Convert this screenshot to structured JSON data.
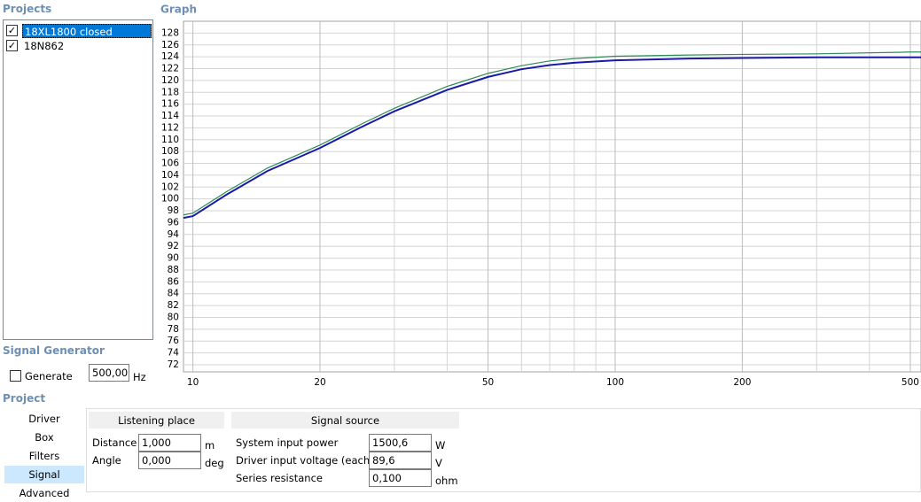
{
  "projects": {
    "title": "Projects",
    "items": [
      {
        "label": "18XL1800 closed",
        "checked": true,
        "selected": true
      },
      {
        "label": "18N862",
        "checked": true,
        "selected": false
      }
    ]
  },
  "signal_generator": {
    "title": "Signal Generator",
    "generate_label": "Generate",
    "generate_checked": false,
    "frequency": "500,00",
    "unit": "Hz"
  },
  "graph": {
    "title": "Graph"
  },
  "chart_data": {
    "type": "line",
    "xscale": "log",
    "grid": true,
    "x": [
      9.5,
      10,
      12,
      15,
      20,
      25,
      30,
      40,
      50,
      60,
      70,
      80,
      100,
      150,
      200,
      300,
      500,
      530
    ],
    "series": [
      {
        "color": "#2e8b57",
        "values": [
          97.3,
          97.6,
          101.2,
          105.2,
          109.1,
          112.6,
          115.3,
          119.0,
          121.2,
          122.5,
          123.3,
          123.7,
          124.1,
          124.3,
          124.4,
          124.5,
          124.8,
          124.8
        ]
      },
      {
        "color": "#1a1aa6",
        "values": [
          96.8,
          97.1,
          100.7,
          104.7,
          108.6,
          112.1,
          114.8,
          118.4,
          120.6,
          121.9,
          122.6,
          123.0,
          123.4,
          123.7,
          123.8,
          123.9,
          123.9,
          123.9
        ]
      }
    ],
    "xlim": [
      9.5,
      530
    ],
    "xticks": [
      10,
      20,
      50,
      100,
      200,
      500
    ],
    "x_minor_grid": [
      30,
      40,
      60,
      70,
      80,
      90,
      300,
      400
    ],
    "ylim": [
      70.8,
      130
    ],
    "yticks": [
      72,
      74,
      76,
      78,
      80,
      82,
      84,
      86,
      88,
      90,
      92,
      94,
      96,
      98,
      100,
      102,
      104,
      106,
      108,
      110,
      112,
      114,
      116,
      118,
      120,
      122,
      124,
      126,
      128
    ]
  },
  "project": {
    "title": "Project",
    "nav": [
      "Driver",
      "Box",
      "Filters",
      "Signal",
      "Advanced"
    ],
    "selected": 3
  },
  "listening_place": {
    "title": "Listening place",
    "fields": [
      {
        "label": "Distance",
        "value": "1,000",
        "unit": "m"
      },
      {
        "label": "Angle",
        "value": "0,000",
        "unit": "deg"
      }
    ]
  },
  "signal_source": {
    "title": "Signal source",
    "fields": [
      {
        "label": "System input power",
        "value": "1500,6",
        "unit": "W"
      },
      {
        "label": "Driver input voltage (each)",
        "value": "89,6",
        "unit": "V"
      },
      {
        "label": "Series resistance",
        "value": "0,100",
        "unit": "ohm"
      }
    ]
  }
}
